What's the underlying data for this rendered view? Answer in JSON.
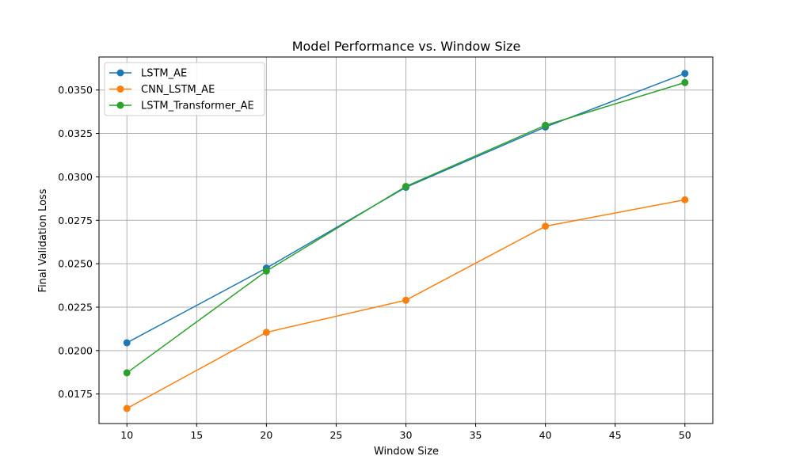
{
  "chart_data": {
    "type": "line",
    "title": "Model Performance vs. Window Size",
    "xlabel": "Window Size",
    "ylabel": "Final Validation Loss",
    "x": [
      10,
      20,
      30,
      40,
      50
    ],
    "xlim": [
      8.0,
      52.0
    ],
    "ylim": [
      0.0158,
      0.0369
    ],
    "xticks": [
      10,
      15,
      20,
      25,
      30,
      35,
      40,
      45,
      50
    ],
    "yticks": [
      0.0175,
      0.02,
      0.0225,
      0.025,
      0.0275,
      0.03,
      0.0325,
      0.035
    ],
    "ytick_labels": [
      "0.0175",
      "0.0200",
      "0.0225",
      "0.0250",
      "0.0275",
      "0.0300",
      "0.0325",
      "0.0350"
    ],
    "grid": true,
    "legend_position": "top-left",
    "series": [
      {
        "name": "LSTM_AE",
        "color": "#1f77b4",
        "values": [
          0.02045,
          0.02475,
          0.0294,
          0.03287,
          0.03595
        ]
      },
      {
        "name": "CNN_LSTM_AE",
        "color": "#ff7f0e",
        "values": [
          0.01667,
          0.02105,
          0.0229,
          0.02716,
          0.02868
        ]
      },
      {
        "name": "LSTM_Transformer_AE",
        "color": "#2ca02c",
        "values": [
          0.01872,
          0.02458,
          0.02945,
          0.03297,
          0.03543
        ]
      }
    ]
  }
}
